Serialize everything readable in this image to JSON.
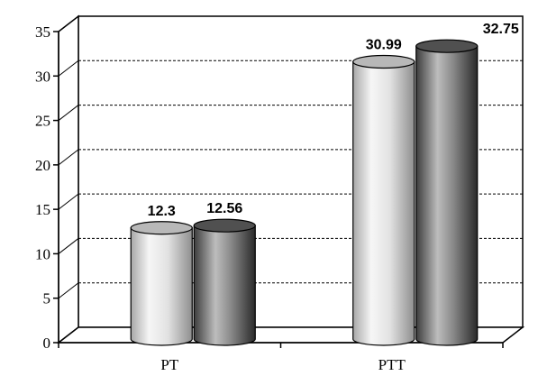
{
  "chart_data": {
    "type": "bar",
    "style": "3d-cylinder",
    "categories": [
      "PT",
      "PTT"
    ],
    "series": [
      {
        "values": [
          12.3,
          30.99
        ],
        "color": "#cfcfcf"
      },
      {
        "values": [
          12.56,
          32.75
        ],
        "color": "#6e6e6e"
      }
    ],
    "data_labels": [
      [
        "12.3",
        "30.99"
      ],
      [
        "12.56",
        "32.75"
      ]
    ],
    "title": "",
    "xlabel": "",
    "ylabel": "",
    "ylim": [
      0,
      35
    ],
    "yticks": [
      0,
      5,
      10,
      15,
      20,
      25,
      30,
      35
    ],
    "grid": "dashed horizontal",
    "legend": "none"
  }
}
